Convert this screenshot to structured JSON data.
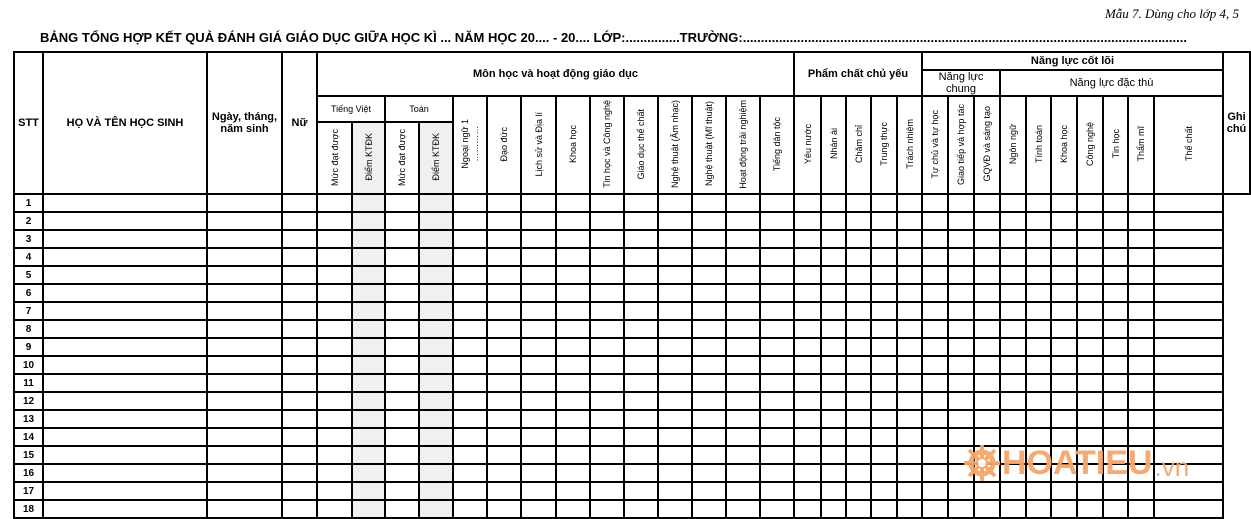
{
  "form_id": "Mẫu 7. Dùng cho lớp 4, 5",
  "title": "BẢNG TỔNG HỢP KẾT QUẢ ĐÁNH GIÁ GIÁO DỤC GIỮA HỌC KÌ ... NĂM HỌC 20.... - 20....  LỚP:...............TRƯỜNG:...........................................................................................................................",
  "headers": {
    "stt": "STT",
    "name": "HỌ VÀ TÊN HỌC SINH",
    "dob": "Ngày, tháng, năm sinh",
    "female": "Nữ",
    "subjects": "Môn học và hoạt động giáo dục",
    "qualities": "Phẩm chất chủ yếu",
    "competencies": "Năng lực cốt lõi",
    "general_comp": "Năng lực chung",
    "specific_comp": "Năng lực đặc thù",
    "notes": "Ghi chú",
    "tieng_viet": "Tiếng Việt",
    "toan": "Toán",
    "level": "Mức đạt được",
    "score": "Điểm KTĐK",
    "foreign_lang": "Ngoại ngữ 1",
    "foreign_lang_dots": "…………",
    "other_subjects": [
      "Đạo đức",
      "Lịch sử và Địa lí",
      "Khoa học",
      "Tin học và Công nghệ",
      "Giáo dục thể chất",
      "Nghệ thuật (Âm nhạc)",
      "Nghệ thuật (Mĩ thuật)",
      "Hoạt động trải nghiệm",
      "Tiếng dân tộc"
    ],
    "quality_items": [
      "Yêu nước",
      "Nhân ái",
      "Chăm chỉ",
      "Trung thực",
      "Trách nhiệm"
    ],
    "general_items": [
      "Tự chủ và tự học",
      "Giao tiếp và hợp tác",
      "GQVĐ và sáng tạo"
    ],
    "specific_items": [
      "Ngôn ngữ",
      "Tính toán",
      "Khoa học",
      "Công nghệ",
      "Tin học",
      "Thẩm mĩ",
      "Thể chất"
    ]
  },
  "rows": [
    "1",
    "2",
    "3",
    "4",
    "5",
    "6",
    "7",
    "8",
    "9",
    "10",
    "11",
    "12",
    "13",
    "14",
    "15",
    "16",
    "17",
    "18"
  ],
  "watermark": {
    "text": "HOATIEU",
    "suffix": ".vn",
    "color": "#f5a66a"
  }
}
